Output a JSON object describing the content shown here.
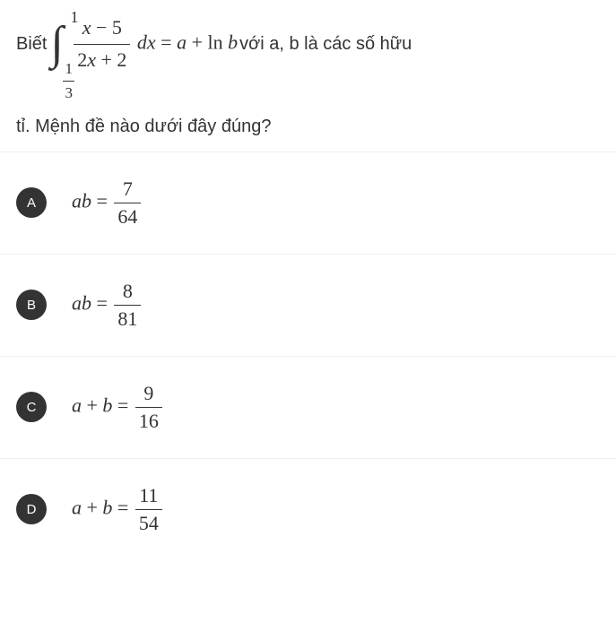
{
  "question": {
    "prefix": "Biết",
    "integral": {
      "upper": "1",
      "lower_num": "1",
      "lower_den": "3",
      "integrand_num_a": "x",
      "integrand_num_op": "−",
      "integrand_num_b": "5",
      "integrand_den_a": "2",
      "integrand_den_var": "x",
      "integrand_den_op": "+",
      "integrand_den_b": "2",
      "dx": "dx"
    },
    "eq": "=",
    "rhs_a": "a",
    "rhs_plus": "+",
    "rhs_ln": "ln",
    "rhs_b": "b",
    "text_mid": " với a, b là các số hữu",
    "text_line2": "tỉ. Mệnh đề nào dưới đây đúng?"
  },
  "options": [
    {
      "letter": "A",
      "lhs_a": "a",
      "lhs_b": "b",
      "lhs_text": "",
      "eq": "=",
      "num": "7",
      "den": "64"
    },
    {
      "letter": "B",
      "lhs_a": "a",
      "lhs_b": "b",
      "lhs_text": "",
      "eq": "=",
      "num": "8",
      "den": "81"
    },
    {
      "letter": "C",
      "lhs_a": "a",
      "lhs_b": "b",
      "lhs_text": "+",
      "eq": "=",
      "num": "9",
      "den": "16"
    },
    {
      "letter": "D",
      "lhs_a": "a",
      "lhs_b": "b",
      "lhs_text": "+",
      "eq": "=",
      "num": "11",
      "den": "54"
    }
  ],
  "colors": {
    "circle_bg": "#333333",
    "circle_fg": "#ffffff",
    "border": "#eeeeee",
    "text": "#333333"
  }
}
